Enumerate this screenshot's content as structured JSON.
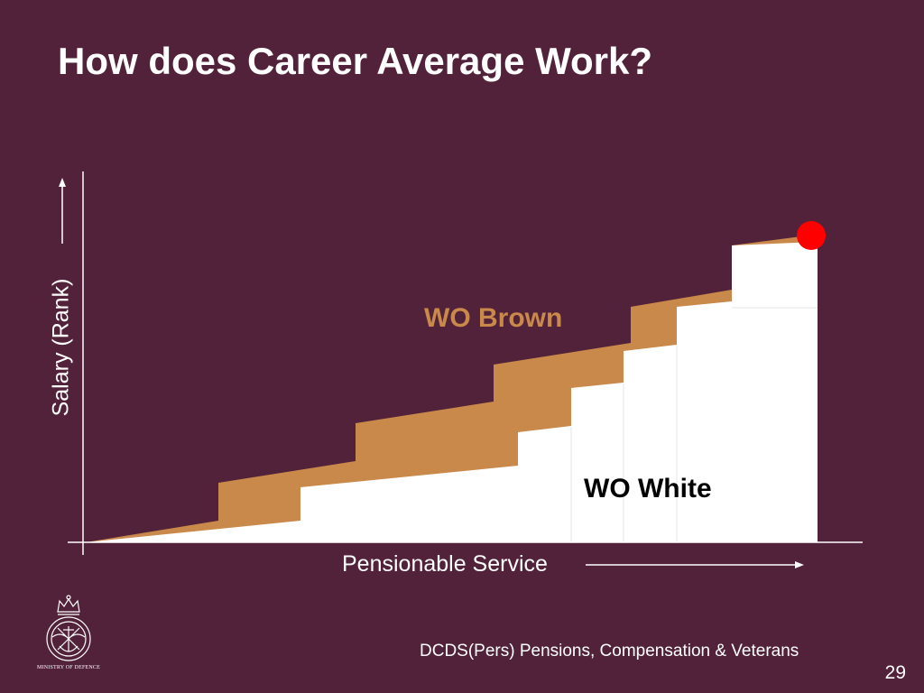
{
  "slide": {
    "title": "How does Career Average Work?",
    "footer": "DCDS(Pers) Pensions, Compensation & Veterans",
    "page_number": "29",
    "logo_text": "MINISTRY OF DEFENCE"
  },
  "diagram": {
    "y_axis_label": "Salary (Rank)",
    "x_axis_label": "Pensionable Service",
    "series": [
      {
        "name": "WO Brown",
        "color": "#c9894a"
      },
      {
        "name": "WO White",
        "color": "#ffffff"
      }
    ],
    "end_marker_color": "#ff0000"
  },
  "colors": {
    "background": "#52223a",
    "text": "#ffffff",
    "brown": "#c9894a",
    "white_series": "#ffffff",
    "marker": "#ff0000"
  }
}
